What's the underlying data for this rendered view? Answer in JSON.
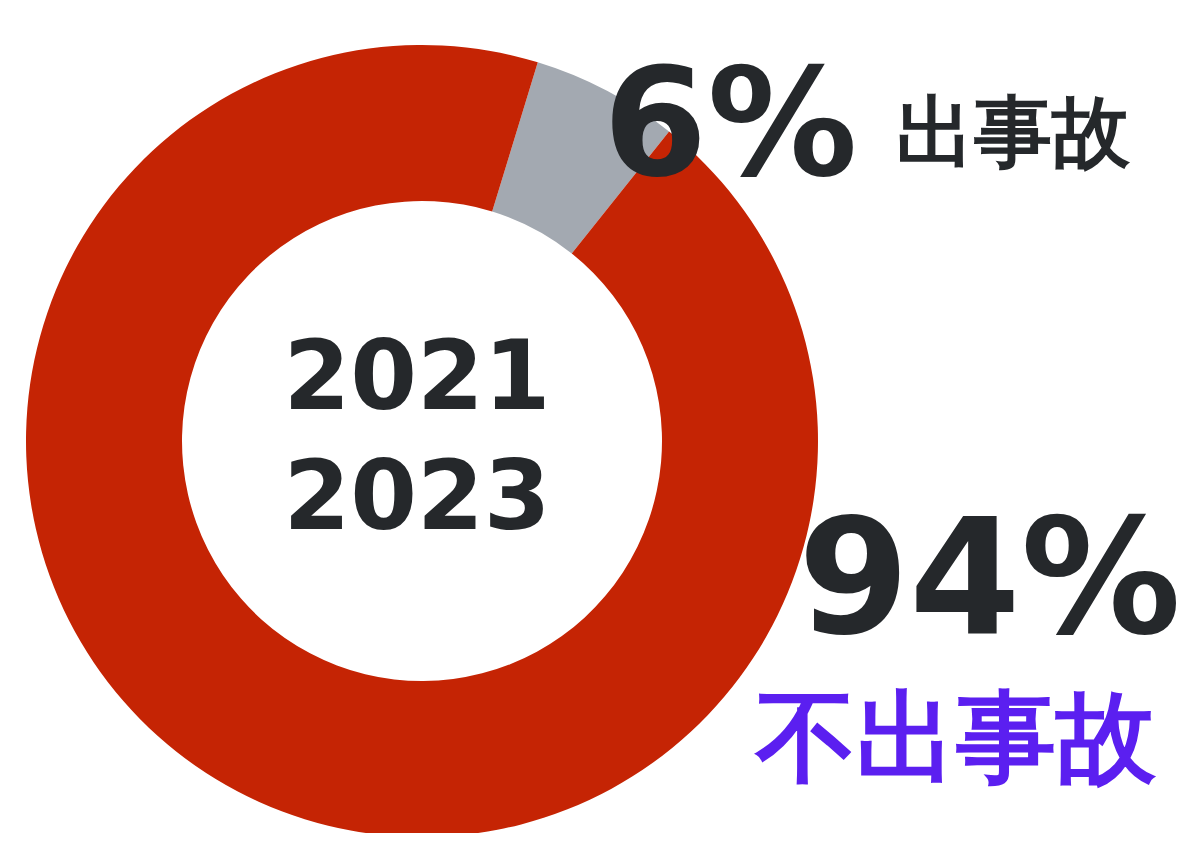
{
  "chart_data": {
    "type": "donut",
    "categories": [
      "出事故",
      "不出事故"
    ],
    "values": [
      6,
      94
    ],
    "colors": [
      "#a3a9b1",
      "#c52404"
    ],
    "value_labels": [
      "6%",
      "94%"
    ],
    "annotations": [
      "2021",
      "2023"
    ]
  }
}
